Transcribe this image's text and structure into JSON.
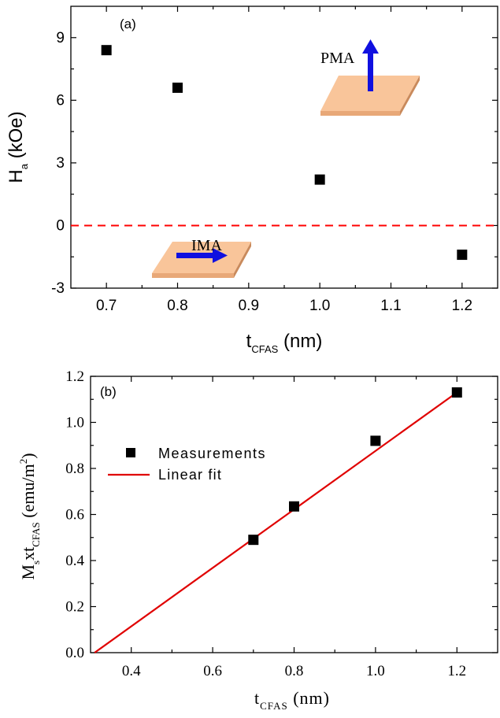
{
  "chart_data": [
    {
      "type": "scatter",
      "panel_label": "(a)",
      "xlabel": {
        "main": "t",
        "sub": "CFAS",
        "unit": " (nm)"
      },
      "ylabel": {
        "main": "H",
        "sub": "a",
        "unit": " (kOe)"
      },
      "xlim": [
        0.65,
        1.25
      ],
      "ylim": [
        -3,
        10.5
      ],
      "xticks": [
        0.7,
        0.8,
        0.9,
        1.0,
        1.1,
        1.2
      ],
      "xtick_labels": [
        "0.7",
        "0.8",
        "0.9",
        "1.0",
        "1.1",
        "1.2"
      ],
      "yticks": [
        -3,
        0,
        3,
        6,
        9
      ],
      "ytick_labels": [
        "-3",
        "0",
        "3",
        "6",
        "9"
      ],
      "series": [
        {
          "x": [
            0.7,
            0.8,
            1.0,
            1.2
          ],
          "y": [
            8.4,
            6.6,
            2.2,
            -1.4
          ],
          "color": "#000000",
          "marker": "square"
        }
      ],
      "reference_line": {
        "y": 0,
        "style": "dashed",
        "color": "#ff0000"
      },
      "annotations": [
        {
          "text": "PMA",
          "arrow": "up",
          "arrow_color": "#1010e0",
          "slab_color": "#f9c59a"
        },
        {
          "text": "IMA",
          "arrow": "right",
          "arrow_color": "#1010e0",
          "slab_color": "#f9c59a"
        }
      ],
      "grid": false
    },
    {
      "type": "scatter",
      "panel_label": "(b)",
      "xlabel": {
        "main": "t",
        "sub": "CFAS",
        "unit": " (nm)"
      },
      "ylabel": {
        "pre": "M",
        "sub1": "s",
        "mid": "xt",
        "sub2": "CFAS",
        "unit": " (emu/m",
        "sup": "2",
        "close": ")"
      },
      "xlim": [
        0.3,
        1.3
      ],
      "ylim": [
        0.0,
        1.2
      ],
      "xticks": [
        0.4,
        0.6,
        0.8,
        1.0,
        1.2
      ],
      "xtick_labels": [
        "0.4",
        "0.6",
        "0.8",
        "1.0",
        "1.2"
      ],
      "yticks": [
        0.0,
        0.2,
        0.4,
        0.6,
        0.8,
        1.0,
        1.2
      ],
      "ytick_labels": [
        "0.0",
        "0.2",
        "0.4",
        "0.6",
        "0.8",
        "1.0",
        "1.2"
      ],
      "series": [
        {
          "name": "Measurements",
          "x": [
            0.7,
            0.8,
            1.0,
            1.2
          ],
          "y": [
            0.49,
            0.635,
            0.92,
            1.13
          ],
          "color": "#000000",
          "marker": "square"
        },
        {
          "name": "Linear fit",
          "type": "line",
          "x": [
            0.31,
            1.2
          ],
          "y": [
            0.0,
            1.13
          ],
          "color": "#e00000"
        }
      ],
      "legend": {
        "placement": "upper-left"
      },
      "grid": false
    }
  ]
}
